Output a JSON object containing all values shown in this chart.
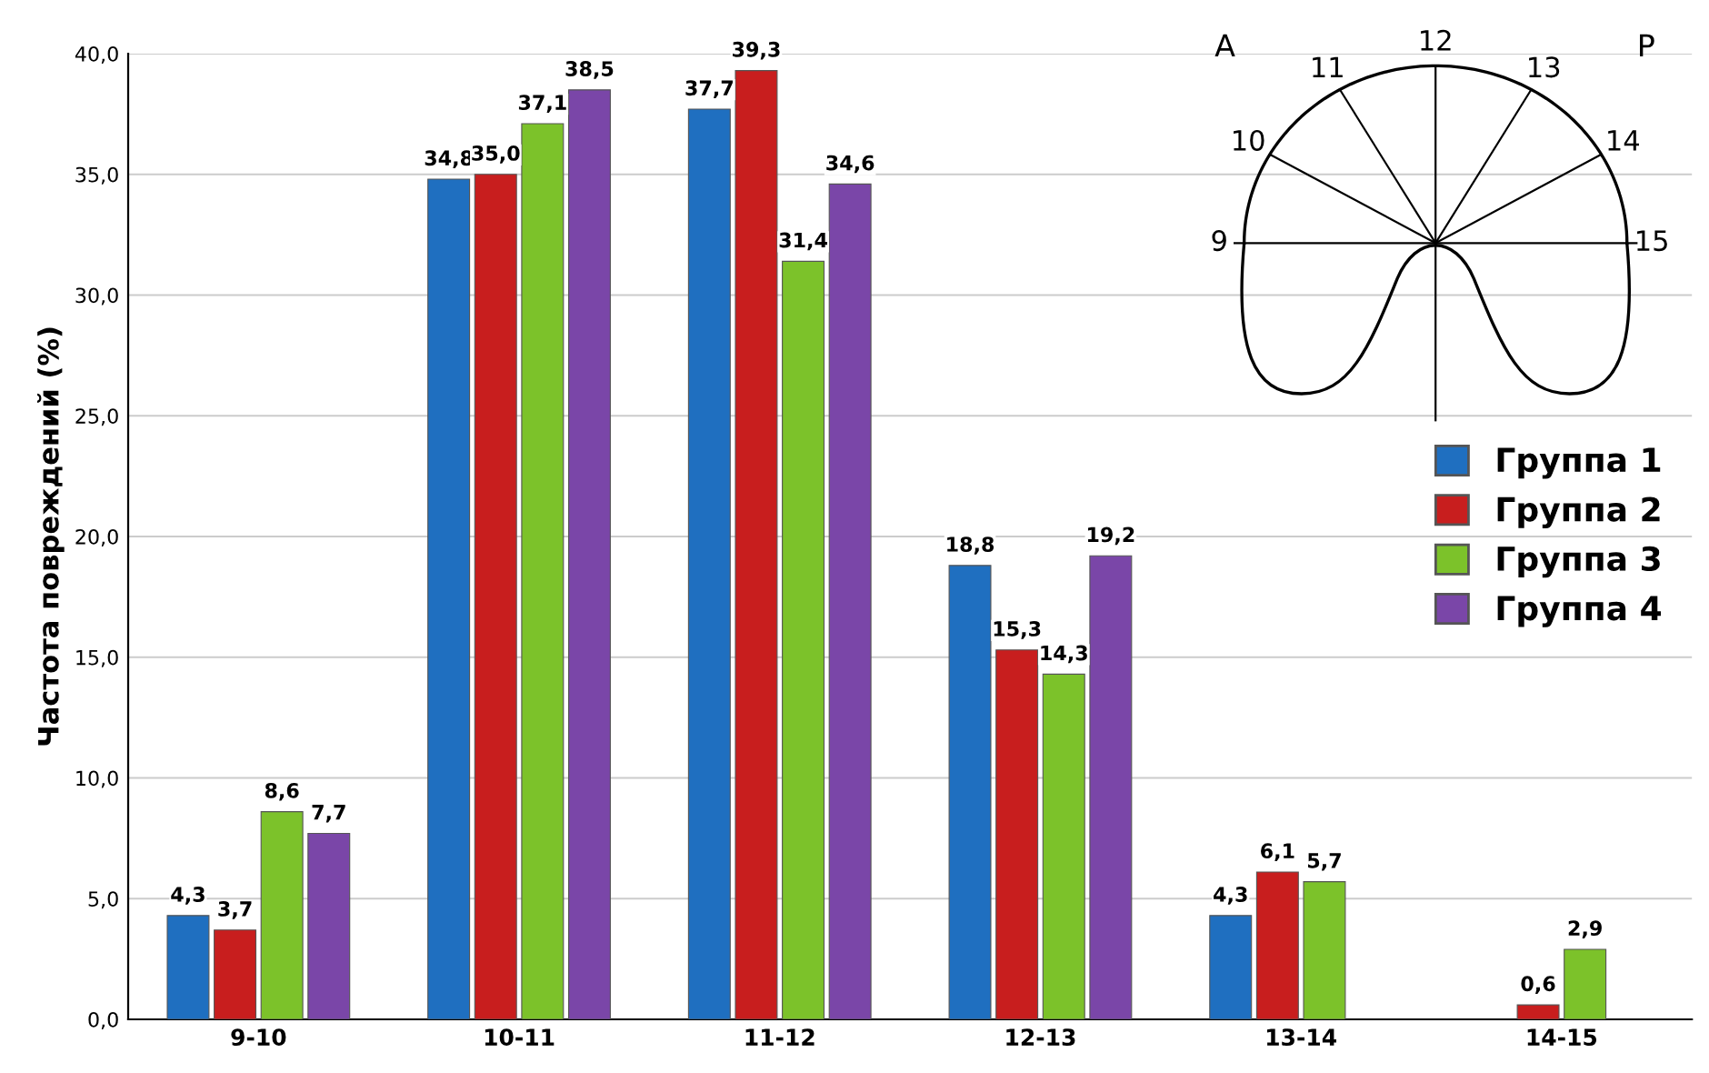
{
  "chart_data": {
    "type": "bar",
    "ylabel": "Частота повреждений (%)",
    "categories": [
      "9-10",
      "10-11",
      "11-12",
      "12-13",
      "13-14",
      "14-15"
    ],
    "series": [
      {
        "name": "Группа 1",
        "color": "#1f6fc0",
        "values": [
          4.3,
          34.8,
          37.7,
          18.8,
          4.3,
          null
        ],
        "value_labels": [
          "4,3",
          "34,8",
          "37,7",
          "18,8",
          "4,3",
          null
        ]
      },
      {
        "name": "Группа 2",
        "color": "#c81e1e",
        "values": [
          3.7,
          35.0,
          39.3,
          15.3,
          6.1,
          0.6
        ],
        "value_labels": [
          "3,7",
          "35,0",
          "39,3",
          "15,3",
          "6,1",
          "0,6"
        ]
      },
      {
        "name": "Группа 3",
        "color": "#7cc22a",
        "values": [
          8.6,
          37.1,
          31.4,
          14.3,
          5.7,
          2.9
        ],
        "value_labels": [
          "8,6",
          "37,1",
          "31,4",
          "14,3",
          "5,7",
          "2,9"
        ]
      },
      {
        "name": "Группа 4",
        "color": "#7a46a8",
        "values": [
          7.7,
          38.5,
          34.6,
          19.2,
          null,
          null
        ],
        "value_labels": [
          "7,7",
          "38,5",
          "34,6",
          "19,2",
          null,
          null
        ]
      }
    ],
    "ylim": [
      0,
      40
    ],
    "yticks": [
      {
        "value": 0,
        "label": "0,0"
      },
      {
        "value": 5,
        "label": "5,0"
      },
      {
        "value": 10,
        "label": "10,0"
      },
      {
        "value": 15,
        "label": "15,0"
      },
      {
        "value": 20,
        "label": "20,0"
      },
      {
        "value": 25,
        "label": "25,0"
      },
      {
        "value": 30,
        "label": "30,0"
      },
      {
        "value": 35,
        "label": "35,0"
      },
      {
        "value": 40,
        "label": "40,0"
      }
    ],
    "grid": "y",
    "legend": "right",
    "annotations": [
      "9",
      "10",
      "11",
      "12",
      "13",
      "14",
      "15",
      "A",
      "P"
    ]
  }
}
